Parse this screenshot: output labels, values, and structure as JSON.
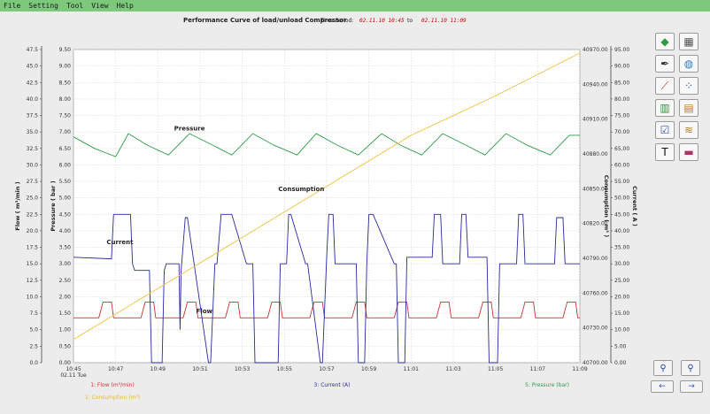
{
  "menu": {
    "items": [
      "File",
      "Setting",
      "Tool",
      "View",
      "Help"
    ]
  },
  "header": {
    "title": "Performance Curve of load/unload Compressor",
    "period_label": "Time Period:",
    "period_start": "02.11.10 10:45",
    "period_to": "to",
    "period_end": "02.11.10 11:09"
  },
  "toolbar": {
    "buttons": [
      {
        "name": "eraser-icon",
        "glyph": "◆",
        "color": "#2e9a3a"
      },
      {
        "name": "calculator-icon",
        "glyph": "▦",
        "color": "#555555"
      },
      {
        "name": "pen-icon",
        "glyph": "✒",
        "color": "#333333"
      },
      {
        "name": "globe-icon",
        "glyph": "◍",
        "color": "#2a7ec8"
      },
      {
        "name": "line-chart-icon",
        "glyph": "⟋",
        "color": "#c03030"
      },
      {
        "name": "scatter-chart-icon",
        "glyph": "⁘",
        "color": "#3050c0"
      },
      {
        "name": "bar-chart-icon",
        "glyph": "▥",
        "color": "#3a8a3a"
      },
      {
        "name": "map-icon",
        "glyph": "▤",
        "color": "#c07a20"
      },
      {
        "name": "report-icon",
        "glyph": "☑",
        "color": "#3a56b0"
      },
      {
        "name": "scroll-icon",
        "glyph": "≋",
        "color": "#b08030"
      },
      {
        "name": "text-icon",
        "glyph": "T",
        "color": "#111111"
      },
      {
        "name": "area-chart-icon",
        "glyph": "▬",
        "color": "#b03060"
      }
    ],
    "zoom_in_glyph": "⚲",
    "zoom_out_glyph": "⚲",
    "prev_glyph": "←",
    "next_glyph": "→"
  },
  "chart_data": {
    "type": "line",
    "x_ticks": [
      "10:45",
      "10:47",
      "10:49",
      "10:51",
      "10:53",
      "10:55",
      "10:57",
      "10:59",
      "11:01",
      "11:03",
      "11:05",
      "11:07",
      "11:09"
    ],
    "x_date_label": "02.11 Tue",
    "axes": {
      "flow": {
        "label": "Flow ( m³/min )",
        "min": 0,
        "max": 47.5,
        "ticks": [
          "0.0",
          "2.5",
          "5.0",
          "7.5",
          "10.0",
          "12.5",
          "15.0",
          "17.5",
          "20.0",
          "22.5",
          "25.0",
          "27.5",
          "30.0",
          "32.5",
          "35.0",
          "37.5",
          "40.0",
          "42.5",
          "45.0",
          "47.5"
        ]
      },
      "pressure": {
        "label": "Pressure ( bar )",
        "min": 0,
        "max": 9.5,
        "ticks": [
          "0.00",
          "0.50",
          "1.00",
          "1.50",
          "2.00",
          "2.50",
          "3.00",
          "3.50",
          "4.00",
          "4.50",
          "5.00",
          "5.50",
          "6.00",
          "6.50",
          "7.00",
          "7.50",
          "8.00",
          "8.50",
          "9.00",
          "9.50"
        ]
      },
      "consumption": {
        "label": "Consumption ( m³ )",
        "min": 40700,
        "max": 40970,
        "ticks": [
          "40700.00",
          "40730.00",
          "40760.00",
          "40790.00",
          "40820.00",
          "40850.00",
          "40880.00",
          "40910.00",
          "40940.00",
          "40970.00"
        ]
      },
      "current": {
        "label": "Current ( A )",
        "min": 0,
        "max": 95,
        "ticks": [
          "0.00",
          "5.00",
          "10.00",
          "15.00",
          "20.00",
          "25.00",
          "30.00",
          "35.00",
          "40.00",
          "45.00",
          "50.00",
          "55.00",
          "60.00",
          "65.00",
          "70.00",
          "75.00",
          "80.00",
          "85.00",
          "90.00",
          "95.00"
        ]
      }
    },
    "annotations": [
      {
        "text": "Pressure",
        "x_min": 5.5,
        "pressure": 7.05
      },
      {
        "text": "Consumption",
        "x_min": 10.8,
        "pressure": 5.2
      },
      {
        "text": "Current",
        "x_min": 2.2,
        "pressure": 3.6
      },
      {
        "text": "Flow",
        "x_min": 6.2,
        "pressure": 1.5
      }
    ],
    "legend": [
      {
        "text": "1: Flow (m³/min)",
        "color": "#c83232"
      },
      {
        "text": "3: Current (A)",
        "color": "#2828a0"
      },
      {
        "text": "5: Pressure (bar)",
        "color": "#2e9a4a"
      },
      {
        "text": "1: Consumption (m³)",
        "color": "#e8b830"
      }
    ],
    "series": [
      {
        "name": "Flow",
        "axis": "flow",
        "color": "#c83232",
        "x": [
          0,
          1.2,
          1.3,
          1.4,
          1.8,
          1.9,
          3.2,
          3.3,
          3.4,
          3.8,
          3.9,
          5.2,
          5.3,
          5.4,
          5.8,
          5.9,
          7.2,
          7.3,
          7.4,
          7.8,
          7.9,
          9.2,
          9.3,
          9.4,
          9.8,
          9.9,
          11.2,
          11.3,
          11.4,
          11.8,
          11.9,
          13.2,
          13.3,
          13.4,
          13.8,
          13.9,
          15.2,
          15.3,
          15.4,
          15.8,
          15.9,
          17.2,
          17.3,
          17.4,
          17.8,
          17.9,
          19.2,
          19.3,
          19.4,
          19.8,
          19.9,
          21.2,
          21.3,
          21.4,
          21.8,
          21.9,
          23.2,
          23.3,
          23.4,
          23.8,
          23.9,
          24
        ],
        "y": [
          6.8,
          6.8,
          8.0,
          9.2,
          9.2,
          6.8,
          6.8,
          8.0,
          9.2,
          9.2,
          6.8,
          6.8,
          8.0,
          9.2,
          9.2,
          6.8,
          6.8,
          8.0,
          9.2,
          9.2,
          6.8,
          6.8,
          8.0,
          9.2,
          9.2,
          6.8,
          6.8,
          8.0,
          9.2,
          9.2,
          6.8,
          6.8,
          8.0,
          9.2,
          9.2,
          6.8,
          6.8,
          8.0,
          9.2,
          9.2,
          6.8,
          6.8,
          8.0,
          9.2,
          9.2,
          6.8,
          6.8,
          8.0,
          9.2,
          9.2,
          6.8,
          6.8,
          8.0,
          9.2,
          9.2,
          6.8,
          6.8,
          8.0,
          9.2,
          9.2,
          6.8,
          6.8
        ]
      },
      {
        "name": "Current",
        "axis": "current",
        "color": "#2828a0",
        "x": [
          0,
          1.8,
          1.9,
          2.7,
          2.8,
          2.9,
          3.6,
          3.7,
          4.2,
          4.3,
          4.4,
          5.0,
          5.05,
          5.1,
          5.3,
          5.4,
          6.4,
          6.5,
          6.7,
          6.8,
          7.0,
          7.1,
          7.4,
          7.5,
          8.2,
          8.3,
          8.5,
          8.6,
          8.7,
          9.7,
          9.8,
          10.1,
          10.2,
          10.3,
          11.0,
          11.1,
          11.7,
          11.8,
          12.0,
          12.1,
          12.3,
          12.4,
          13.4,
          13.5,
          13.8,
          13.9,
          14.0,
          14.2,
          15.2,
          15.3,
          15.4,
          15.7,
          15.8,
          17.0,
          17.1,
          17.4,
          17.5,
          17.6,
          18.3,
          18.4,
          18.6,
          18.7,
          19.6,
          19.7,
          19.8,
          20.1,
          20.2,
          20.3,
          21.0,
          21.1,
          21.3,
          21.4,
          22.8,
          22.9,
          23.2,
          23.3,
          23.4,
          23.8,
          23.9,
          24
        ],
        "y": [
          32,
          31.5,
          45,
          45,
          30,
          28,
          28,
          0,
          0,
          28,
          30,
          30,
          10,
          28,
          44,
          44,
          0,
          0,
          30,
          30,
          45,
          45,
          45,
          45,
          30,
          30,
          30,
          0,
          0,
          0,
          30,
          30,
          45,
          45,
          30,
          30,
          0,
          0,
          32,
          45,
          45,
          30,
          30,
          0,
          0,
          30,
          45,
          45,
          30,
          30,
          0,
          0,
          32,
          32,
          45,
          45,
          30,
          30,
          30,
          45,
          45,
          32,
          32,
          0,
          0,
          0,
          30,
          30,
          30,
          45,
          45,
          30,
          30,
          44,
          44,
          30,
          30,
          30,
          30,
          30
        ]
      },
      {
        "name": "Pressure",
        "axis": "pressure",
        "color": "#2e9a4a",
        "x": [
          0,
          1.0,
          2.0,
          2.6,
          3.5,
          4.5,
          5.5,
          6.6,
          7.5,
          8.5,
          9.5,
          10.6,
          11.5,
          12.5,
          13.5,
          14.6,
          15.5,
          16.5,
          17.5,
          18.6,
          19.5,
          20.5,
          21.5,
          22.6,
          23.5,
          24
        ],
        "y": [
          6.85,
          6.5,
          6.25,
          6.95,
          6.6,
          6.3,
          6.95,
          6.6,
          6.3,
          6.95,
          6.6,
          6.3,
          6.95,
          6.6,
          6.3,
          6.95,
          6.6,
          6.3,
          6.95,
          6.6,
          6.3,
          6.95,
          6.6,
          6.3,
          6.9,
          6.9
        ]
      },
      {
        "name": "Consumption",
        "axis": "consumption",
        "color": "#f0c040",
        "x": [
          0,
          4,
          8,
          12,
          16,
          20,
          24
        ],
        "y": [
          40720,
          40764,
          40808,
          40852,
          40896,
          40930,
          40967
        ]
      }
    ],
    "grid": true
  }
}
